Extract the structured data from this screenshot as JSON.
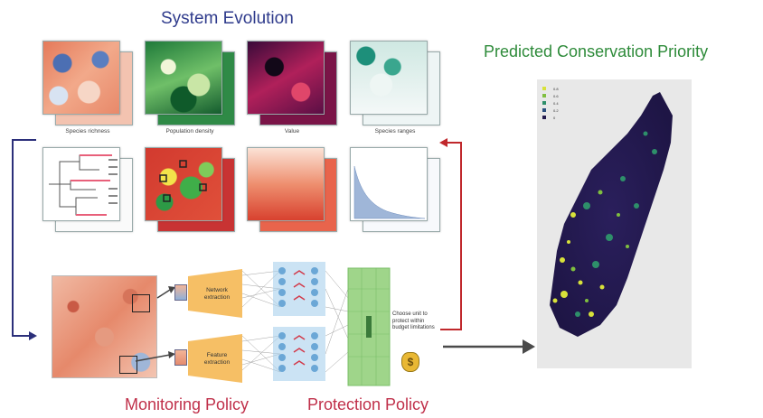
{
  "titles": {
    "system_evolution": "System Evolution",
    "predicted_priority": "Predicted Conservation Priority",
    "monitoring_policy": "Monitoring Policy",
    "protection_policy": "Protection Policy"
  },
  "tile_labels": [
    "Species richness",
    "Population density",
    "Value",
    "Species ranges"
  ],
  "extractors": {
    "top": "Network extraction",
    "bottom": "Feature extraction"
  },
  "choose_unit_text": "Choose unit to protect within budget limitations",
  "money_symbol": "$",
  "legend": {
    "entries": [
      {
        "label": "0.8",
        "color": "#d8e23a"
      },
      {
        "label": "0.6",
        "color": "#7fbf3f"
      },
      {
        "label": "0.4",
        "color": "#2e8f6a"
      },
      {
        "label": "0.2",
        "color": "#2b4f7e"
      },
      {
        "label": "0",
        "color": "#231b4d"
      }
    ]
  },
  "colors": {
    "system_evolution": "#2f3b8c",
    "predicted_priority": "#2e8b3a",
    "monitoring_policy": "#c0304a",
    "protection_policy": "#c0304a",
    "loop_left_arrow": "#2b2f7a",
    "loop_right_arrow": "#c0282c"
  }
}
